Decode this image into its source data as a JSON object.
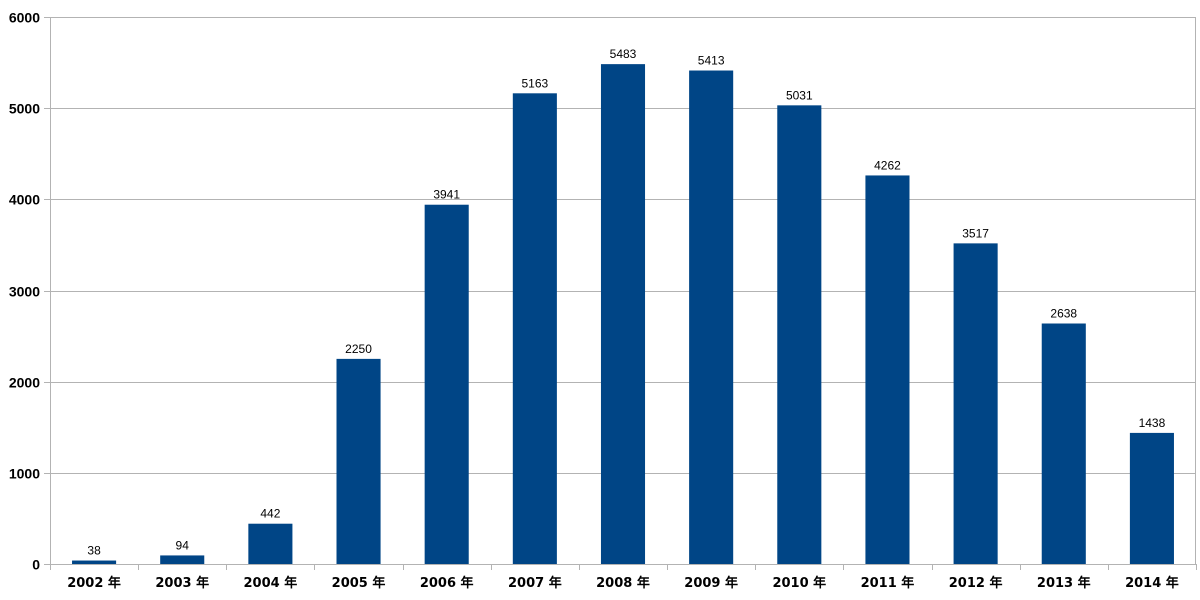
{
  "chart_data": {
    "type": "bar",
    "categories": [
      "2002 年",
      "2003 年",
      "2004 年",
      "2005 年",
      "2006 年",
      "2007 年",
      "2008 年",
      "2009 年",
      "2010 年",
      "2011 年",
      "2012 年",
      "2013 年",
      "2014 年"
    ],
    "values": [
      38,
      94,
      442,
      2250,
      3941,
      5163,
      5483,
      5413,
      5031,
      4262,
      3517,
      2638,
      1438
    ],
    "data_labels": [
      "38",
      "94",
      "442",
      "2250",
      "3941",
      "5163",
      "5483",
      "5413",
      "5031",
      "4262",
      "3517",
      "2638",
      "1438"
    ],
    "y_ticks": [
      0,
      1000,
      2000,
      3000,
      4000,
      5000,
      6000
    ],
    "y_tick_labels": [
      "0",
      "1000",
      "2000",
      "3000",
      "4000",
      "5000",
      "6000"
    ],
    "ylim": [
      0,
      6000
    ],
    "title": "",
    "xlabel": "",
    "ylabel": "",
    "grid": true,
    "legend": "none",
    "bar_color": "#004586",
    "grid_color": "#b3b3b3"
  }
}
